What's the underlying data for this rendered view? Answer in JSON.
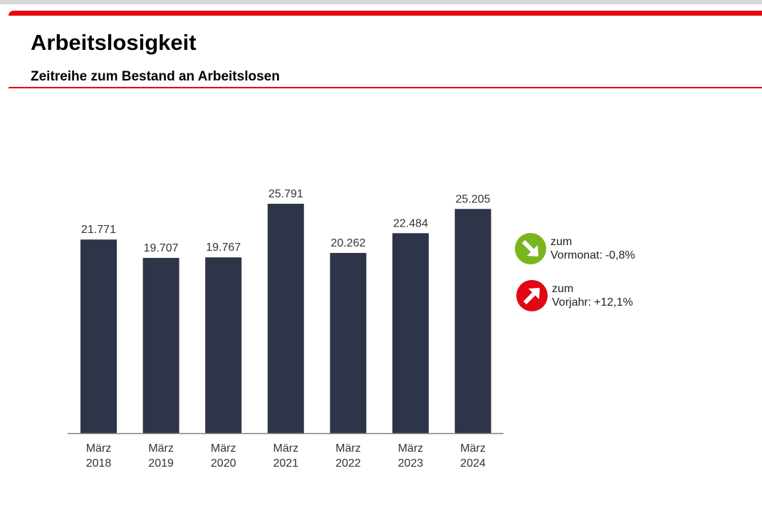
{
  "header": {
    "title": "Arbeitslosigkeit",
    "subtitle": "Zeitreihe zum Bestand an Arbeitslosen"
  },
  "colors": {
    "accent": "#e30613",
    "bar": "#2e3548",
    "positive": "#7ab51d",
    "negative": "#e30613",
    "axis": "#808080"
  },
  "chart_data": {
    "type": "bar",
    "title": "Zeitreihe zum Bestand an Arbeitslosen",
    "categories": [
      [
        "März",
        "2018"
      ],
      [
        "März",
        "2019"
      ],
      [
        "März",
        "2020"
      ],
      [
        "März",
        "2021"
      ],
      [
        "März",
        "2022"
      ],
      [
        "März",
        "2023"
      ],
      [
        "März",
        "2024"
      ]
    ],
    "values": [
      21771,
      19707,
      19767,
      25791,
      20262,
      22484,
      25205
    ],
    "value_labels": [
      "21.771",
      "19.707",
      "19.767",
      "25.791",
      "20.262",
      "22.484",
      "25.205"
    ],
    "xlabel": "",
    "ylabel": "",
    "ylim": [
      0,
      25791
    ],
    "grid": false,
    "legend": [
      {
        "icon": "arrow-down-right-icon",
        "line1": "zum",
        "line2": "Vormonat:",
        "value": "-0,8%",
        "color": "#7ab51d"
      },
      {
        "icon": "arrow-up-right-icon",
        "line1": "zum",
        "line2": "Vorjahr:",
        "value": "+12,1%",
        "color": "#e30613"
      }
    ]
  }
}
